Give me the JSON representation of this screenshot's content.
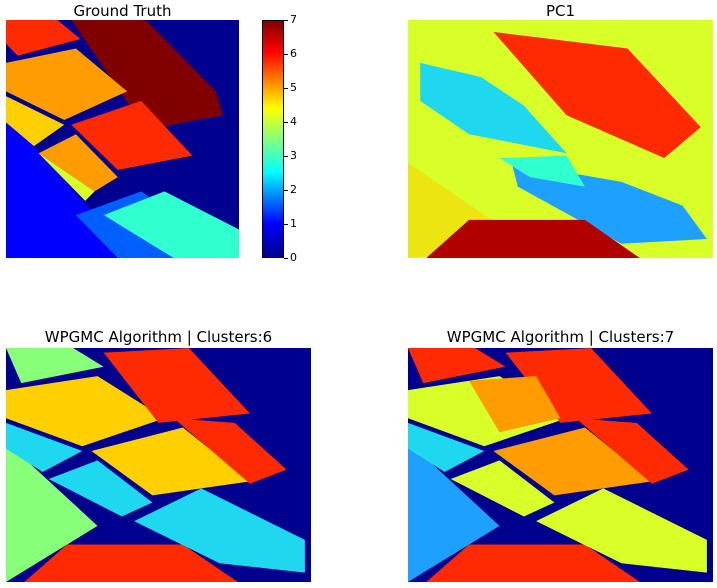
{
  "titles": {
    "gt": "Ground Truth",
    "pc1": "PC1",
    "c6": "WPGMC Algorithm | Clusters:6",
    "c7": "WPGMC Algorithm | Clusters:7"
  },
  "chart_data": [
    {
      "type": "heatmap",
      "title": "Ground Truth",
      "colormap": "jet",
      "colorbar": {
        "ticks": [
          "0",
          "1",
          "2",
          "3",
          "4",
          "5",
          "6",
          "7"
        ],
        "range": [
          0,
          7
        ]
      },
      "classes_present": [
        0,
        1,
        2,
        3,
        4,
        5,
        6,
        7
      ]
    },
    {
      "type": "heatmap",
      "title": "PC1",
      "colormap": "jet"
    },
    {
      "type": "heatmap",
      "title": "WPGMC Algorithm | Clusters:6",
      "colormap": "jet",
      "clusters": 6
    },
    {
      "type": "heatmap",
      "title": "WPGMC Algorithm | Clusters:7",
      "colormap": "jet",
      "clusters": 7
    }
  ],
  "colors": {
    "navy": "#00008f",
    "blue": "#0000ff",
    "lightblue": "#0060ff",
    "skyblue": "#1ea0ff",
    "cyan": "#1ed8f0",
    "teal": "#30ffd0",
    "lightgreen": "#88ff78",
    "lime": "#d8ff28",
    "yellow": "#ffd000",
    "orange": "#ff9c00",
    "red": "#ff2a00",
    "maroon": "#800000"
  }
}
